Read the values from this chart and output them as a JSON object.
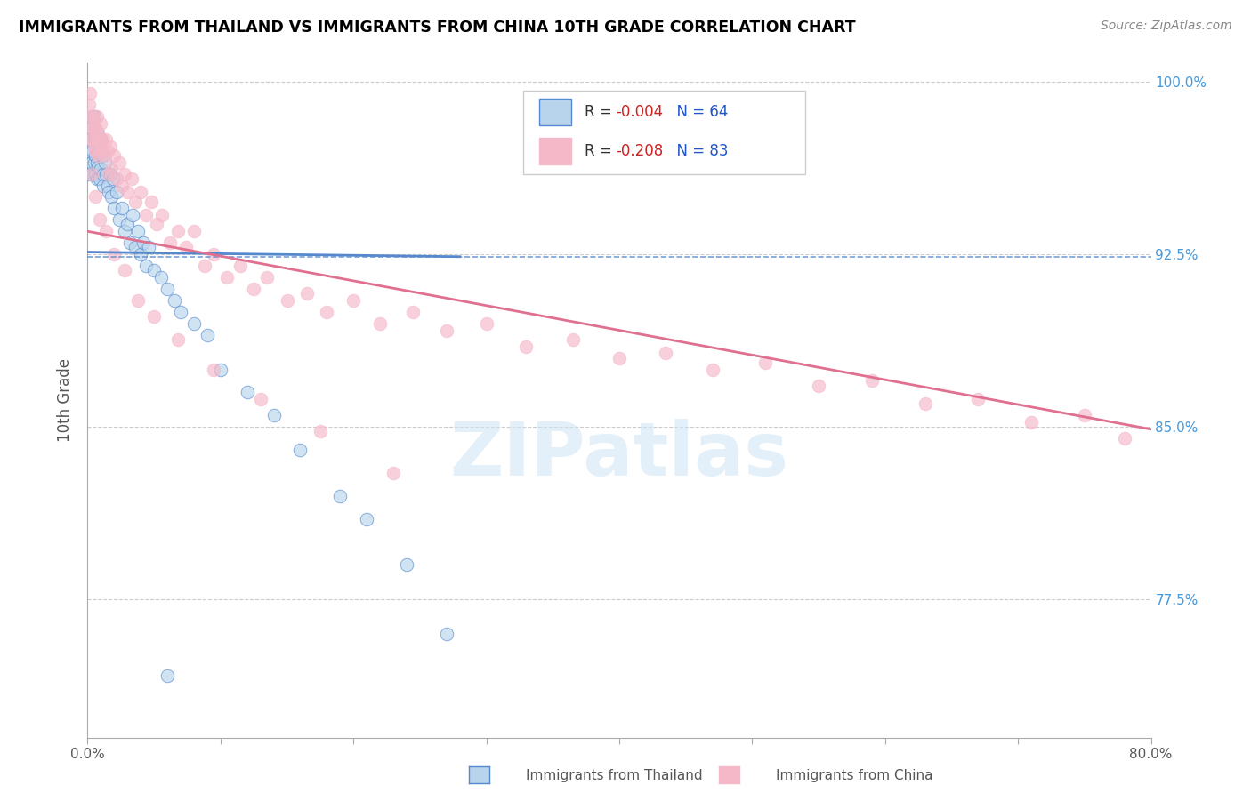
{
  "title": "IMMIGRANTS FROM THAILAND VS IMMIGRANTS FROM CHINA 10TH GRADE CORRELATION CHART",
  "source": "Source: ZipAtlas.com",
  "xlabel_thailand": "Immigrants from Thailand",
  "xlabel_china": "Immigrants from China",
  "ylabel": "10th Grade",
  "xlim": [
    0.0,
    0.8
  ],
  "ylim": [
    0.715,
    1.008
  ],
  "ytick_positions": [
    0.775,
    0.85,
    0.925,
    1.0
  ],
  "ytick_labels": [
    "77.5%",
    "85.0%",
    "92.5%",
    "100.0%"
  ],
  "r_thailand": -0.004,
  "n_thailand": 64,
  "r_china": -0.208,
  "n_china": 83,
  "color_thailand": "#b8d4ed",
  "color_china": "#f5b8c8",
  "trend_color_thailand": "#5588cc",
  "trend_color_china": "#e07090",
  "watermark_text": "ZIPatlas",
  "thailand_trend_x": [
    0.0,
    0.28
  ],
  "thailand_trend_y": [
    0.926,
    0.924
  ],
  "china_trend_x": [
    0.0,
    0.8
  ],
  "china_trend_y": [
    0.935,
    0.849
  ],
  "thailand_x": [
    0.001,
    0.002,
    0.002,
    0.003,
    0.003,
    0.003,
    0.004,
    0.004,
    0.004,
    0.005,
    0.005,
    0.005,
    0.006,
    0.006,
    0.006,
    0.007,
    0.007,
    0.007,
    0.008,
    0.008,
    0.009,
    0.009,
    0.01,
    0.01,
    0.011,
    0.012,
    0.012,
    0.013,
    0.014,
    0.015,
    0.016,
    0.017,
    0.018,
    0.019,
    0.02,
    0.022,
    0.024,
    0.026,
    0.028,
    0.03,
    0.032,
    0.034,
    0.036,
    0.038,
    0.04,
    0.042,
    0.044,
    0.046,
    0.05,
    0.055,
    0.06,
    0.065,
    0.07,
    0.08,
    0.09,
    0.1,
    0.12,
    0.14,
    0.16,
    0.19,
    0.21,
    0.24,
    0.27,
    0.06
  ],
  "thailand_y": [
    0.97,
    0.975,
    0.96,
    0.98,
    0.975,
    0.965,
    0.985,
    0.97,
    0.96,
    0.975,
    0.965,
    0.985,
    0.975,
    0.968,
    0.96,
    0.978,
    0.965,
    0.958,
    0.97,
    0.963,
    0.972,
    0.958,
    0.975,
    0.962,
    0.968,
    0.96,
    0.955,
    0.965,
    0.96,
    0.955,
    0.952,
    0.96,
    0.95,
    0.958,
    0.945,
    0.952,
    0.94,
    0.945,
    0.935,
    0.938,
    0.93,
    0.942,
    0.928,
    0.935,
    0.925,
    0.93,
    0.92,
    0.928,
    0.918,
    0.915,
    0.91,
    0.905,
    0.9,
    0.895,
    0.89,
    0.875,
    0.865,
    0.855,
    0.84,
    0.82,
    0.81,
    0.79,
    0.76,
    0.742
  ],
  "china_x": [
    0.001,
    0.002,
    0.002,
    0.003,
    0.003,
    0.004,
    0.004,
    0.005,
    0.005,
    0.006,
    0.006,
    0.007,
    0.007,
    0.008,
    0.008,
    0.009,
    0.01,
    0.01,
    0.011,
    0.012,
    0.013,
    0.014,
    0.015,
    0.016,
    0.017,
    0.018,
    0.02,
    0.022,
    0.024,
    0.026,
    0.028,
    0.03,
    0.033,
    0.036,
    0.04,
    0.044,
    0.048,
    0.052,
    0.056,
    0.062,
    0.068,
    0.074,
    0.08,
    0.088,
    0.095,
    0.105,
    0.115,
    0.125,
    0.135,
    0.15,
    0.165,
    0.18,
    0.2,
    0.22,
    0.245,
    0.27,
    0.3,
    0.33,
    0.365,
    0.4,
    0.435,
    0.47,
    0.51,
    0.55,
    0.59,
    0.63,
    0.67,
    0.71,
    0.75,
    0.78,
    0.003,
    0.006,
    0.009,
    0.014,
    0.02,
    0.028,
    0.038,
    0.05,
    0.068,
    0.095,
    0.13,
    0.175,
    0.23
  ],
  "china_y": [
    0.99,
    0.995,
    0.98,
    0.985,
    0.975,
    0.985,
    0.975,
    0.98,
    0.972,
    0.98,
    0.97,
    0.985,
    0.975,
    0.978,
    0.968,
    0.975,
    0.982,
    0.97,
    0.975,
    0.97,
    0.968,
    0.975,
    0.97,
    0.96,
    0.972,
    0.962,
    0.968,
    0.958,
    0.965,
    0.955,
    0.96,
    0.952,
    0.958,
    0.948,
    0.952,
    0.942,
    0.948,
    0.938,
    0.942,
    0.93,
    0.935,
    0.928,
    0.935,
    0.92,
    0.925,
    0.915,
    0.92,
    0.91,
    0.915,
    0.905,
    0.908,
    0.9,
    0.905,
    0.895,
    0.9,
    0.892,
    0.895,
    0.885,
    0.888,
    0.88,
    0.882,
    0.875,
    0.878,
    0.868,
    0.87,
    0.86,
    0.862,
    0.852,
    0.855,
    0.845,
    0.96,
    0.95,
    0.94,
    0.935,
    0.925,
    0.918,
    0.905,
    0.898,
    0.888,
    0.875,
    0.862,
    0.848,
    0.83
  ]
}
